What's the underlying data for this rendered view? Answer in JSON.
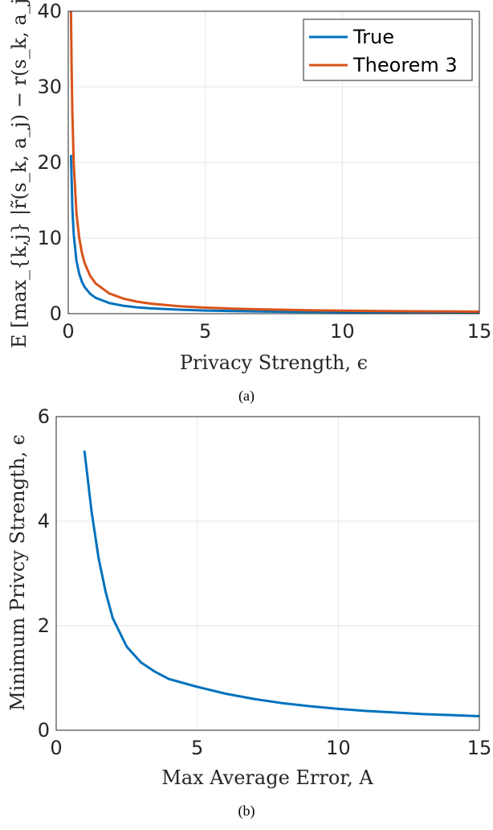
{
  "chart_data": [
    {
      "panel": "a",
      "type": "line",
      "caption": "(a)",
      "xlabel": "Privacy Strength, ϵ",
      "ylabel": "E [max_{k,j} |r̃(s_k, a_j) − r(s_k, a_j)|]",
      "xlim": [
        0,
        15
      ],
      "ylim": [
        0,
        40
      ],
      "xticks": [
        "0",
        "5",
        "10",
        "15"
      ],
      "yticks": [
        "0",
        "10",
        "20",
        "30",
        "40"
      ],
      "grid": true,
      "legend": {
        "placement": "top-right",
        "entries": [
          "True",
          "Theorem 3"
        ]
      },
      "series": [
        {
          "name": "True",
          "color": "#0072BD",
          "x": [
            0.1,
            0.15,
            0.2,
            0.3,
            0.4,
            0.5,
            0.6,
            0.8,
            1.0,
            1.5,
            2.0,
            2.5,
            3,
            4,
            5,
            6,
            7,
            8,
            9,
            10,
            11,
            12,
            13,
            14,
            15
          ],
          "y": [
            21.0,
            14.0,
            10.5,
            7.0,
            5.25,
            4.2,
            3.5,
            2.63,
            2.1,
            1.4,
            1.05,
            0.84,
            0.7,
            0.53,
            0.42,
            0.35,
            0.3,
            0.26,
            0.23,
            0.21,
            0.19,
            0.18,
            0.16,
            0.15,
            0.14
          ]
        },
        {
          "name": "Theorem 3",
          "color": "#D95319",
          "x": [
            0.1,
            0.12,
            0.15,
            0.2,
            0.3,
            0.4,
            0.5,
            0.6,
            0.8,
            1.0,
            1.5,
            2.0,
            2.5,
            3,
            4,
            5,
            6,
            7,
            8,
            9,
            10,
            11,
            12,
            13,
            14,
            15
          ],
          "y": [
            40.0,
            33.3,
            26.7,
            20.0,
            13.3,
            10.0,
            8.0,
            6.67,
            5.0,
            4.0,
            2.67,
            2.0,
            1.6,
            1.33,
            1.0,
            0.8,
            0.67,
            0.57,
            0.5,
            0.44,
            0.4,
            0.36,
            0.33,
            0.31,
            0.29,
            0.27
          ]
        }
      ]
    },
    {
      "panel": "b",
      "type": "line",
      "caption": "(b)",
      "xlabel": "Max Average Error, A",
      "ylabel": "Minimum Privcy Strength, ϵ",
      "xlim": [
        0,
        15
      ],
      "ylim": [
        0,
        6
      ],
      "xticks": [
        "0",
        "5",
        "10",
        "15"
      ],
      "yticks": [
        "0",
        "2",
        "4",
        "6"
      ],
      "grid": true,
      "series": [
        {
          "color": "#0072BD",
          "x": [
            1.0,
            1.1,
            1.25,
            1.5,
            1.75,
            2.0,
            2.5,
            3,
            3.5,
            4,
            5,
            6,
            7,
            8,
            9,
            10,
            11,
            12,
            13,
            14,
            15
          ],
          "y": [
            5.35,
            4.9,
            4.2,
            3.3,
            2.65,
            2.15,
            1.6,
            1.3,
            1.12,
            0.98,
            0.83,
            0.7,
            0.6,
            0.52,
            0.46,
            0.41,
            0.37,
            0.34,
            0.31,
            0.29,
            0.27
          ]
        }
      ]
    }
  ]
}
